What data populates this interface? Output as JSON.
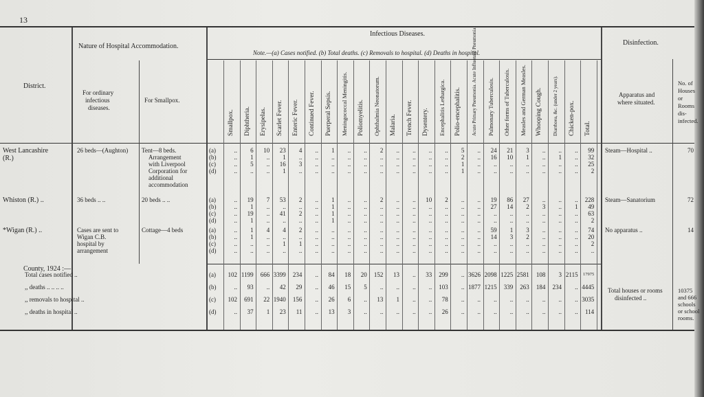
{
  "page_number": "13",
  "headers": {
    "district": "District.",
    "nature": "Nature of Hospital Accommodation.",
    "ordinary": [
      "For ordinary",
      "infectious",
      "diseases."
    ],
    "smallpox_col": "For Smallpox.",
    "infectious": "Infectious Diseases.",
    "note": "Note.—(a) Cases notified. (b) Total deaths. (c) Removals to hospital. (d) Deaths in hospital.",
    "disinfection": "Disinfection.",
    "apparatus": [
      "Apparatus and",
      "where situated."
    ],
    "houses": [
      "No. of",
      "Houses",
      "or",
      "Rooms",
      "dis-",
      "infected."
    ]
  },
  "disease_columns": [
    "Smallpox.",
    "Diphtheria.",
    "Erysipelas.",
    "Scarlet Fever.",
    "Enteric Fever.",
    "Continued Fever.",
    "Puerperal Sepsis.",
    "Meningococcal Meningitis.",
    "Poliomyelitis.",
    "Ophthalmia Neonatorum.",
    "Malaria.",
    "Trench Fever.",
    "Dysentery.",
    "Encephalitis Lethargica.",
    "Polio-encephalitis.",
    "Acute Primary Pneumonia. Acute Influenzal Pneumonia.",
    "Pulmonary Tuberculosis.",
    "Other forms of Tuberculosis.",
    "Measles and German Measles.",
    "Whooping Cough.",
    "Diarrhoea, &c. (under 2 years).",
    "Chicken-pox.",
    "Total."
  ],
  "districts": [
    {
      "name": [
        "West Lancashire",
        "(R.)"
      ],
      "ordinary": [
        "26 beds—(Aughton)"
      ],
      "smallpox": [
        "Tent—8 beds.",
        "Arrangement",
        "with Liverpool",
        "Corporation for",
        "additional",
        "accommodation"
      ],
      "apparatus": "Steam—Hospital  ..",
      "houses": "70",
      "rows": [
        {
          "k": "(a)",
          "v": [
            "..",
            "6",
            "10",
            "23",
            "4",
            "..",
            "1",
            "..",
            "..",
            "2",
            "..",
            "..",
            "..",
            "..",
            "5",
            "..",
            "24",
            "21",
            "3",
            "..",
            "..",
            "..",
            "99"
          ]
        },
        {
          "k": "(b)",
          "v": [
            "..",
            "1",
            "..",
            "1",
            "..",
            "..",
            "..",
            "..",
            "..",
            "..",
            "..",
            "..",
            "..",
            "..",
            "2",
            "..",
            "16",
            "10",
            "1",
            "..",
            "1",
            "..",
            "32"
          ]
        },
        {
          "k": "(c)",
          "v": [
            "..",
            "5",
            "..",
            "16",
            "3",
            "..",
            "..",
            "..",
            "..",
            "..",
            "..",
            "..",
            "..",
            "..",
            "1",
            "..",
            "..",
            "..",
            "..",
            "..",
            "..",
            "..",
            "25"
          ]
        },
        {
          "k": "(d)",
          "v": [
            "..",
            "..",
            "..",
            "1",
            "..",
            "..",
            "..",
            "..",
            "..",
            "..",
            "..",
            "..",
            "..",
            "..",
            "1",
            "..",
            "..",
            "..",
            "..",
            "..",
            "..",
            "..",
            "2"
          ]
        }
      ]
    },
    {
      "name": [
        "Whiston (R.)  .."
      ],
      "ordinary": [
        "36 beds    ..   .."
      ],
      "smallpox": [
        "20 beds    ..    .."
      ],
      "apparatus": "Steam—Sanatorium",
      "houses": "72",
      "rows": [
        {
          "k": "(a)",
          "v": [
            "..",
            "19",
            "7",
            "53",
            "2",
            "..",
            "1",
            "..",
            "..",
            "2",
            "..",
            "..",
            "10",
            "2",
            "..",
            "..",
            "19",
            "86",
            "27",
            "..",
            "..",
            "..",
            "228"
          ]
        },
        {
          "k": "(b)",
          "v": [
            "..",
            "1",
            "..",
            "..",
            "..",
            "..",
            "1",
            "..",
            "..",
            "..",
            "..",
            "..",
            "..",
            "..",
            "..",
            "..",
            "27",
            "14",
            "2",
            "3",
            "..",
            "1",
            "49"
          ]
        },
        {
          "k": "(c)",
          "v": [
            "..",
            "19",
            "..",
            "41",
            "2",
            "..",
            "1",
            "..",
            "..",
            "..",
            "..",
            "..",
            "..",
            "..",
            "..",
            "..",
            "..",
            "..",
            "..",
            "..",
            "..",
            "..",
            "63"
          ]
        },
        {
          "k": "(d)",
          "v": [
            "..",
            "1",
            "..",
            "..",
            "..",
            "..",
            "1",
            "..",
            "..",
            "..",
            "..",
            "..",
            "..",
            "..",
            "..",
            "..",
            "..",
            "..",
            "..",
            "..",
            "..",
            "..",
            "2"
          ]
        }
      ]
    },
    {
      "name": [
        "*Wigan (R.)   .."
      ],
      "ordinary": [
        "Cases are sent to",
        "Wigan C.B.",
        "hospital by",
        "arrangement"
      ],
      "smallpox": [
        "Cottage—4 beds"
      ],
      "apparatus": "No apparatus    ..",
      "houses": "14",
      "rows": [
        {
          "k": "(a)",
          "v": [
            "..",
            "1",
            "4",
            "4",
            "2",
            "..",
            "..",
            "..",
            "..",
            "..",
            "..",
            "..",
            "..",
            "..",
            "..",
            "..",
            "59",
            "1",
            "3",
            "..",
            "..",
            "..",
            "74"
          ]
        },
        {
          "k": "(b)",
          "v": [
            "..",
            "1",
            "..",
            "..",
            "..",
            "..",
            "..",
            "..",
            "..",
            "..",
            "..",
            "..",
            "..",
            "..",
            "..",
            "..",
            "14",
            "3",
            "2",
            "..",
            "..",
            "..",
            "20"
          ]
        },
        {
          "k": "(c)",
          "v": [
            "..",
            "..",
            "..",
            "1",
            "1",
            "..",
            "..",
            "..",
            "..",
            "..",
            "..",
            "..",
            "..",
            "..",
            "..",
            "..",
            "..",
            "..",
            "..",
            "..",
            "..",
            "..",
            "2"
          ]
        },
        {
          "k": "(d)",
          "v": [
            "..",
            "..",
            "..",
            "..",
            "..",
            "..",
            "..",
            "..",
            "..",
            "..",
            "..",
            "..",
            "..",
            "..",
            "..",
            "..",
            "..",
            "..",
            "..",
            "..",
            "..",
            "..",
            ".."
          ]
        }
      ]
    }
  ],
  "county": {
    "heading": "County, 1924 :—",
    "rows": [
      {
        "label": "Total cases notified  ..",
        "k": "(a)",
        "v": [
          "102",
          "1199",
          "666",
          "3399",
          "234",
          "..",
          "84",
          "18",
          "20",
          "152",
          "13",
          "..",
          "33",
          "299",
          "..",
          "3626",
          "2098",
          "1225",
          "2581",
          "108",
          "3",
          "2115",
          "17975"
        ]
      },
      {
        "label": ",,   deaths  ..   ..   ..   ..",
        "k": "(b)",
        "v": [
          "..",
          "93",
          "..",
          "42",
          "29",
          "..",
          "46",
          "15",
          "5",
          "..",
          "..",
          "..",
          "..",
          "103",
          "..",
          "1877",
          "1215",
          "339",
          "263",
          "184",
          "234",
          "..",
          "4445"
        ]
      },
      {
        "label": ",,   removals to hospital  ..",
        "k": "(c)",
        "v": [
          "102",
          "691",
          "22",
          "1940",
          "156",
          "..",
          "26",
          "6",
          "..",
          "13",
          "1",
          "..",
          "..",
          "78",
          "..",
          "..",
          "..",
          "..",
          "..",
          "..",
          "..",
          "..",
          "3035"
        ]
      },
      {
        "label": ",,   deaths in hospital   ..",
        "k": "(d)",
        "v": [
          "..",
          "37",
          "1",
          "23",
          "11",
          "..",
          "13",
          "3",
          "..",
          "..",
          "..",
          "..",
          "..",
          "26",
          "..",
          "..",
          "..",
          "..",
          "..",
          "..",
          "..",
          "..",
          "114"
        ]
      }
    ],
    "disinfected_label": [
      "Total houses or rooms",
      "disinfected   .."
    ],
    "houses_total": [
      "10375",
      "and 666",
      "schools",
      "or school",
      "rooms."
    ]
  }
}
